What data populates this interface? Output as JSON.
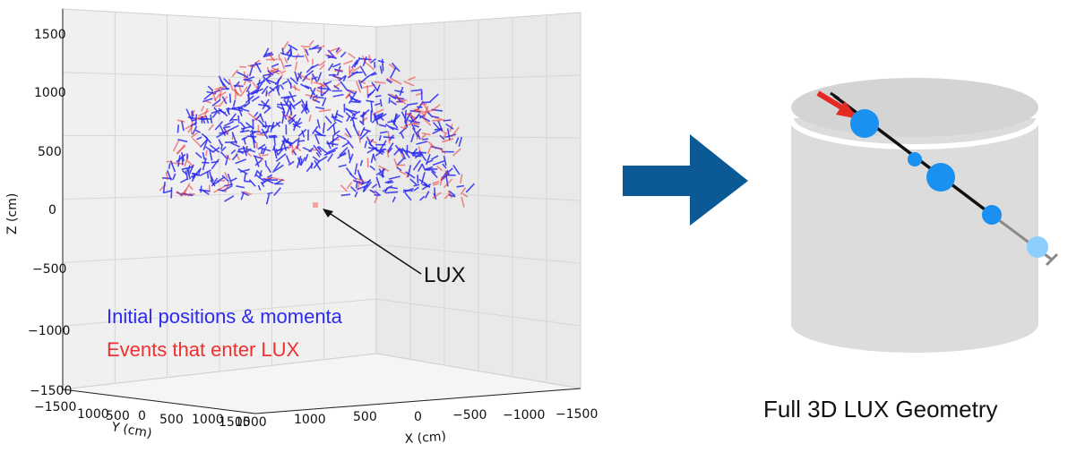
{
  "plot": {
    "z_label": "Z (cm)",
    "y_label": "Y (cm)",
    "x_label": "X (cm)",
    "z_ticks": [
      "1500",
      "1000",
      "500",
      "0",
      "−500",
      "−1000",
      "−1500"
    ],
    "y_ticks": [
      "−1500",
      "1000",
      "500",
      "0",
      "500",
      "1000",
      "1500"
    ],
    "x_ticks": [
      "1500",
      "1000",
      "500",
      "0",
      "−500",
      "−1000",
      "−1500"
    ],
    "legend": {
      "initial": "Initial positions & momenta",
      "events": "Events that enter LUX"
    },
    "lux_label": "LUX",
    "colors": {
      "initial": "#2a2af0",
      "events": "#ee3030"
    }
  },
  "chart_data": {
    "type": "scatter",
    "description_free": true,
    "series": [
      {
        "name": "Initial positions & momenta",
        "color": "#2a2af0"
      },
      {
        "name": "Events that enter LUX",
        "color": "#ee3030"
      }
    ],
    "z_range": [
      -1500,
      1500
    ],
    "x_range": [
      1500,
      -1500
    ],
    "y_range": [
      -1500,
      1500
    ]
  },
  "arrow": {
    "color": "#0b5a96"
  },
  "geometry": {
    "caption": "Full 3D LUX Geometry",
    "cylinder_color": "#dcdcdc",
    "track_color": "#111111",
    "incoming_arrow_color": "#e52a24",
    "scatter_color": "#1a90f0",
    "exit_color": "#8ccfff"
  }
}
